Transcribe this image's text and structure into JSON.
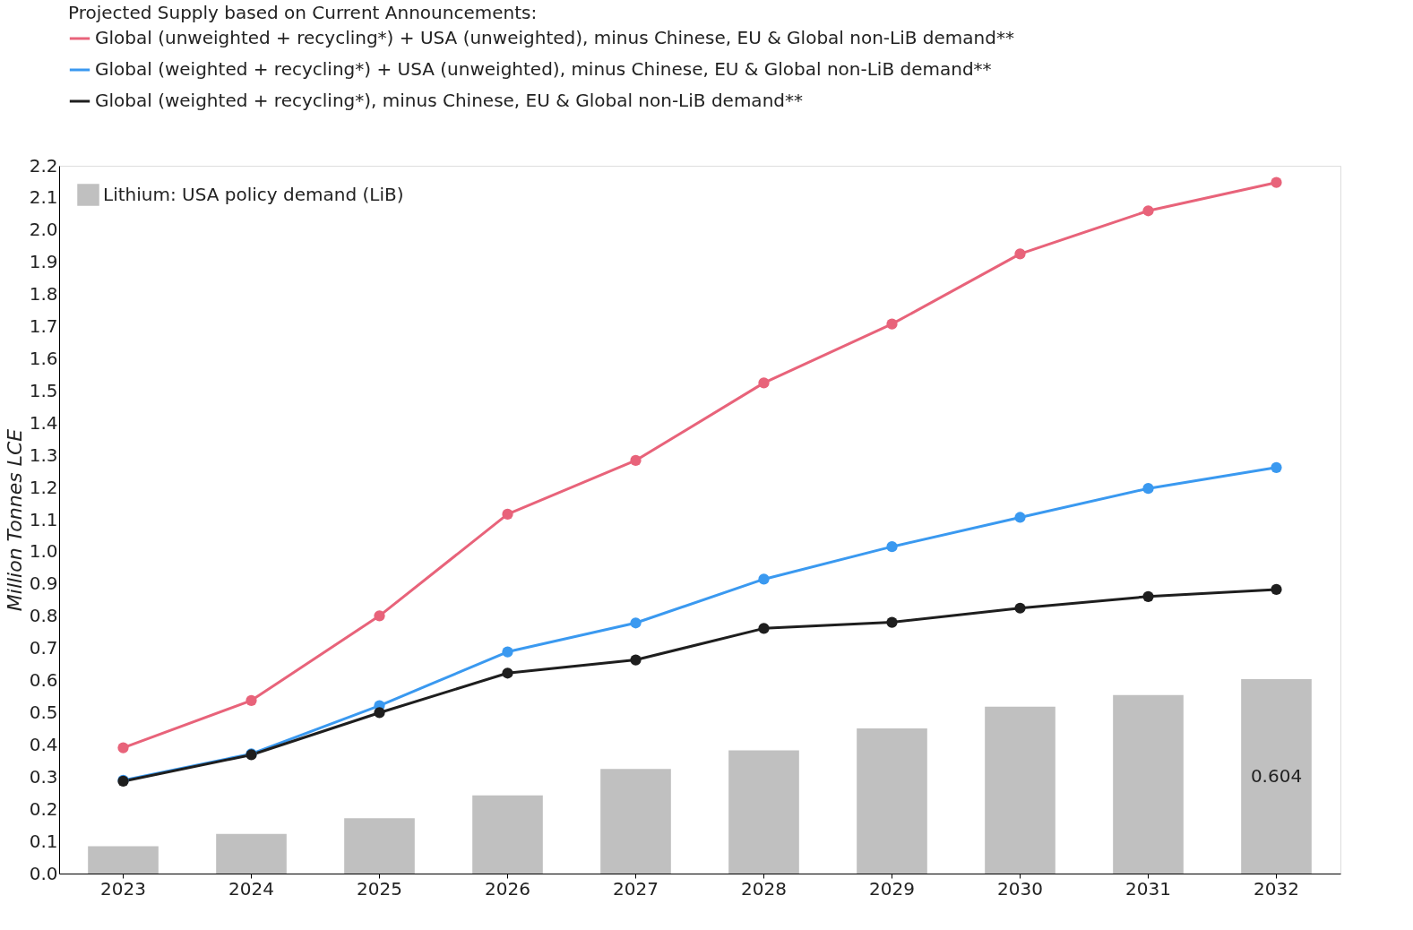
{
  "chart_data": {
    "type": "line",
    "categories": [
      "2023",
      "2024",
      "2025",
      "2026",
      "2027",
      "2028",
      "2029",
      "2030",
      "2031",
      "2032"
    ],
    "ylabel": "Million Tonnes LCE",
    "legend_title": "Projected Supply based on Current Announcements:",
    "ylim": [
      0,
      2.2
    ],
    "yticks": [
      {
        "value": 0,
        "label": "0.0"
      },
      {
        "value": 0.1,
        "label": "0.1"
      },
      {
        "value": 0.2,
        "label": "0.2"
      },
      {
        "value": 0.3,
        "label": "0.3"
      },
      {
        "value": 0.4,
        "label": "0.4"
      },
      {
        "value": 0.5,
        "label": "0.5"
      },
      {
        "value": 0.6,
        "label": "0.6"
      },
      {
        "value": 0.7,
        "label": "0.7"
      },
      {
        "value": 0.8,
        "label": "0.8"
      },
      {
        "value": 0.9,
        "label": "0.9"
      },
      {
        "value": 1.0,
        "label": "1.0"
      },
      {
        "value": 1.1,
        "label": "1.1"
      },
      {
        "value": 1.2,
        "label": "1.2"
      },
      {
        "value": 1.3,
        "label": "1.3"
      },
      {
        "value": 1.4,
        "label": "1.4"
      },
      {
        "value": 1.5,
        "label": "1.5"
      },
      {
        "value": 1.6,
        "label": "1.6"
      },
      {
        "value": 1.7,
        "label": "1.7"
      },
      {
        "value": 1.8,
        "label": "1.8"
      },
      {
        "value": 1.9,
        "label": "1.9"
      },
      {
        "value": 2.0,
        "label": "2.0"
      },
      {
        "value": 2.1,
        "label": "2.1"
      },
      {
        "value": 2.2,
        "label": "2.2"
      }
    ],
    "grid": false,
    "legend": "top",
    "marker": "circle",
    "line_style": "solid",
    "series": [
      {
        "name": "Lithium: USA policy demand (LiB)",
        "type": "bar",
        "color": "#c0c0c0",
        "values": [
          0.085,
          0.123,
          0.172,
          0.243,
          0.325,
          0.383,
          0.451,
          0.519,
          0.555,
          0.604
        ],
        "value_labels": [
          null,
          null,
          null,
          null,
          null,
          null,
          null,
          null,
          null,
          "0.604"
        ]
      },
      {
        "name": "Global (unweighted + recycling*) + USA (unweighted), minus Chinese, EU & Global non-LiB demand**",
        "color": "#e8637a",
        "values": [
          0.391,
          0.538,
          0.801,
          1.117,
          1.284,
          1.525,
          1.708,
          1.926,
          2.06,
          2.148
        ]
      },
      {
        "name": "Global (weighted + recycling*) + USA (unweighted), minus Chinese, EU & Global non-LiB demand**",
        "color": "#3a99f0",
        "values": [
          0.29,
          0.372,
          0.522,
          0.689,
          0.779,
          0.915,
          1.016,
          1.107,
          1.197,
          1.262
        ]
      },
      {
        "name": "Global (weighted + recycling*), minus Chinese, EU & Global non-LiB demand**",
        "color": "#1e1e1e",
        "values": [
          0.287,
          0.369,
          0.5,
          0.623,
          0.664,
          0.762,
          0.781,
          0.825,
          0.861,
          0.883
        ]
      }
    ]
  }
}
